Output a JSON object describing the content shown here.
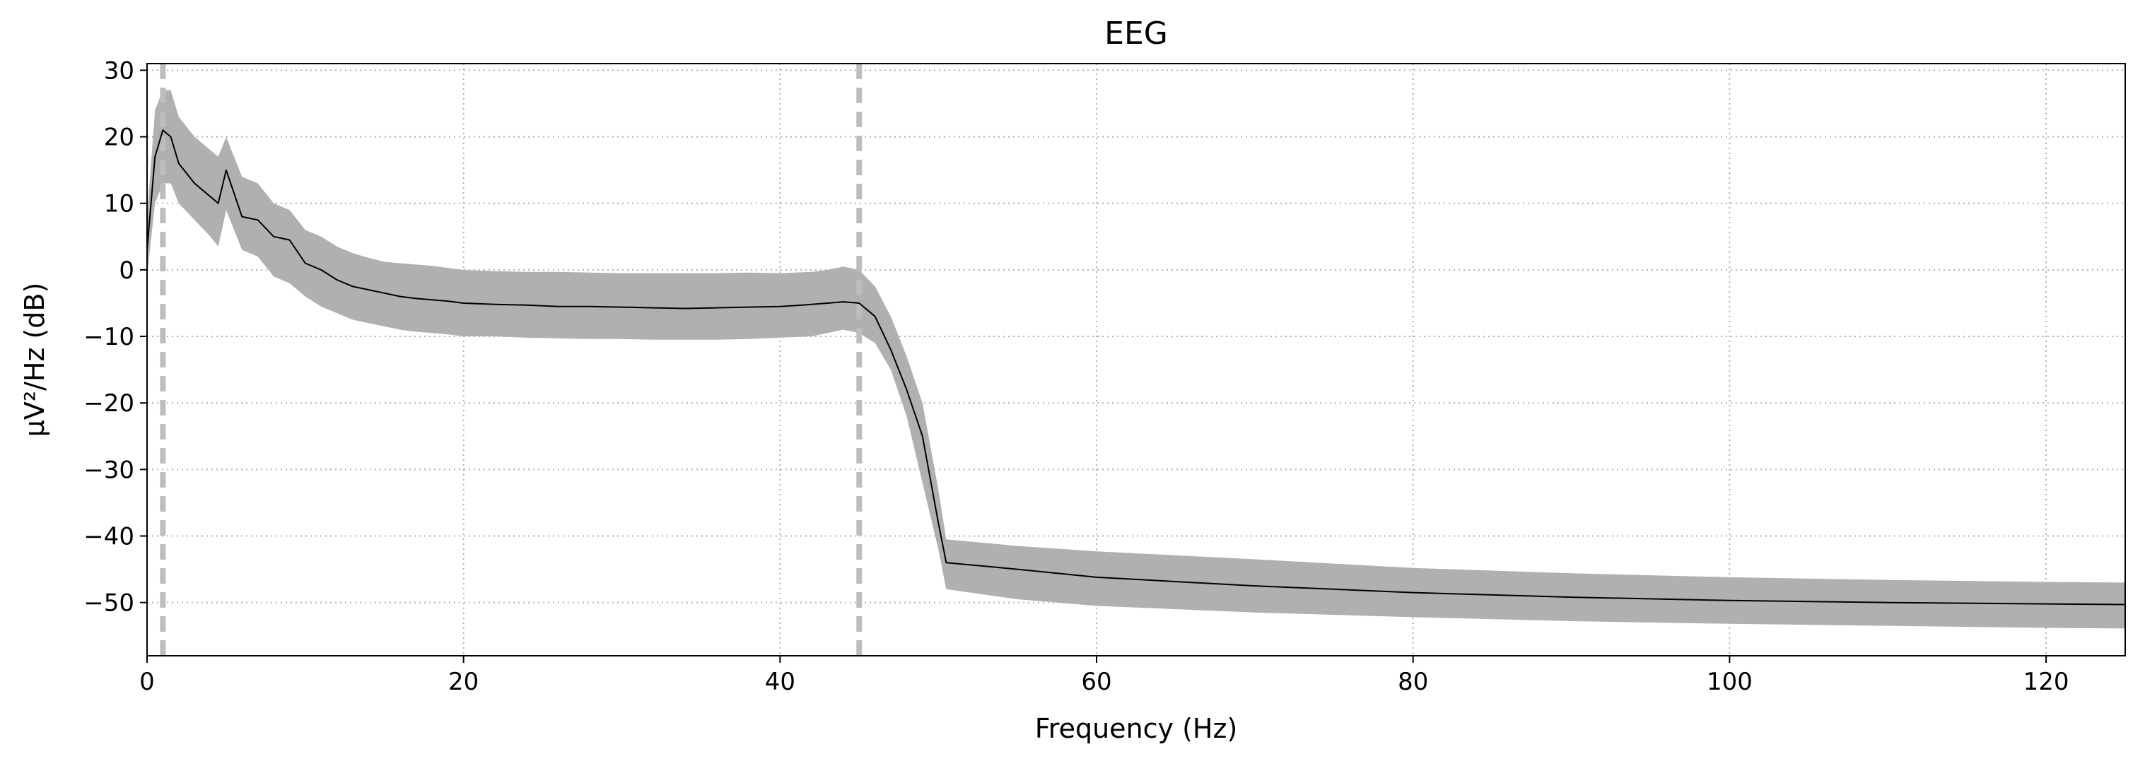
{
  "chart_data": {
    "type": "line",
    "title": "EEG",
    "xlabel": "Frequency (Hz)",
    "ylabel": "µV²/Hz (dB)",
    "xlim": [
      0,
      125
    ],
    "ylim": [
      -58,
      31
    ],
    "xticks": [
      0,
      20,
      40,
      60,
      80,
      100,
      120
    ],
    "yticks": [
      30,
      20,
      10,
      0,
      -10,
      -20,
      -30,
      -40,
      -50
    ],
    "grid": true,
    "colors": {
      "mean_line": "#000000",
      "band": "#b0b0b0",
      "markers": "#bdbdbd",
      "grid": "#b0b0b0"
    },
    "vertical_markers": [
      1,
      45
    ],
    "series": [
      {
        "name": "mean",
        "x": [
          0,
          0.5,
          1,
          1.5,
          2,
          3,
          4,
          4.5,
          5,
          6,
          7,
          8,
          9,
          10,
          11,
          12,
          13,
          14,
          15,
          16,
          17,
          18,
          19,
          20,
          22,
          24,
          26,
          28,
          30,
          32,
          34,
          36,
          38,
          40,
          42,
          43,
          44,
          45,
          46,
          47,
          48,
          49,
          50,
          50.5,
          55,
          60,
          70,
          80,
          90,
          100,
          110,
          120,
          125
        ],
        "y": [
          3,
          17,
          21,
          20,
          16,
          13,
          11,
          10,
          15,
          8,
          7.5,
          5,
          4.5,
          1,
          0,
          -1.5,
          -2.5,
          -3,
          -3.5,
          -4,
          -4.3,
          -4.5,
          -4.7,
          -5,
          -5.2,
          -5.3,
          -5.5,
          -5.5,
          -5.6,
          -5.7,
          -5.8,
          -5.7,
          -5.6,
          -5.5,
          -5.2,
          -5,
          -4.8,
          -5,
          -7,
          -12,
          -18,
          -25,
          -38,
          -44,
          -45,
          -46.2,
          -47.5,
          -48.5,
          -49.2,
          -49.7,
          -50,
          -50.2,
          -50.3
        ]
      },
      {
        "name": "lower",
        "x": [
          0,
          0.5,
          1,
          1.5,
          2,
          3,
          4,
          4.5,
          5,
          6,
          7,
          8,
          9,
          10,
          11,
          12,
          13,
          14,
          15,
          16,
          17,
          18,
          19,
          20,
          22,
          24,
          26,
          28,
          30,
          32,
          34,
          36,
          38,
          40,
          42,
          43,
          44,
          45,
          46,
          47,
          48,
          49,
          50,
          50.5,
          55,
          60,
          70,
          80,
          90,
          100,
          110,
          120,
          125
        ],
        "y": [
          -1,
          10,
          13,
          13,
          10,
          7.5,
          5,
          3.5,
          9,
          3,
          2,
          -1,
          -2,
          -4,
          -5.5,
          -6.5,
          -7.5,
          -8,
          -8.5,
          -9,
          -9.3,
          -9.5,
          -9.7,
          -10,
          -10,
          -10.2,
          -10.3,
          -10.4,
          -10.4,
          -10.5,
          -10.5,
          -10.5,
          -10.4,
          -10.2,
          -10,
          -9.5,
          -9,
          -9.5,
          -11,
          -15,
          -22,
          -32,
          -42,
          -48,
          -49.5,
          -50.5,
          -51.5,
          -52.2,
          -52.8,
          -53.2,
          -53.5,
          -53.8,
          -53.9
        ]
      },
      {
        "name": "upper",
        "x": [
          0,
          0.5,
          1,
          1.5,
          2,
          3,
          4,
          4.5,
          5,
          6,
          7,
          8,
          9,
          10,
          11,
          12,
          13,
          14,
          15,
          16,
          17,
          18,
          19,
          20,
          22,
          24,
          26,
          28,
          30,
          32,
          34,
          36,
          38,
          40,
          42,
          43,
          44,
          45,
          46,
          47,
          48,
          49,
          50,
          50.5,
          55,
          60,
          70,
          80,
          90,
          100,
          110,
          120,
          125
        ],
        "y": [
          8,
          24,
          27,
          27,
          23,
          20,
          18,
          17,
          20,
          14,
          13,
          10,
          9,
          6,
          5,
          3.5,
          2.5,
          1.8,
          1.2,
          1,
          0.8,
          0.6,
          0.3,
          0,
          -0.2,
          -0.3,
          -0.3,
          -0.4,
          -0.5,
          -0.5,
          -0.5,
          -0.5,
          -0.4,
          -0.5,
          -0.3,
          0,
          0.5,
          0,
          -2.5,
          -7,
          -13,
          -20,
          -33,
          -40.5,
          -41.5,
          -42.3,
          -43.5,
          -44.8,
          -45.6,
          -46.2,
          -46.6,
          -46.9,
          -47
        ]
      }
    ]
  }
}
